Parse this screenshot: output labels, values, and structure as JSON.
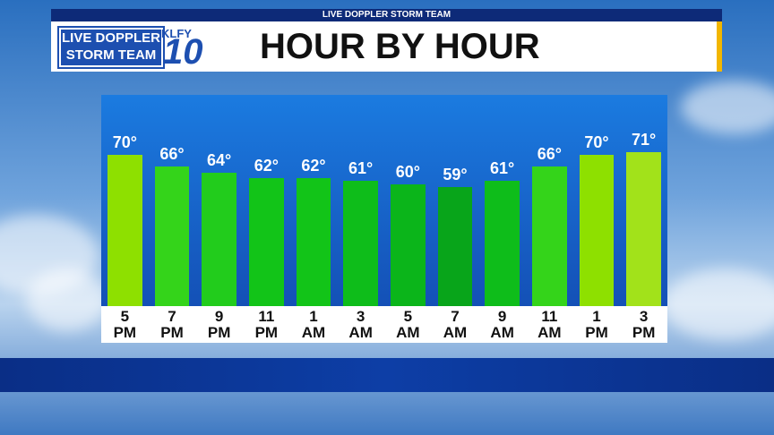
{
  "header": {
    "strip": "LIVE DOPPLER STORM TEAM",
    "logo_line1": "LIVE DOPPLER",
    "logo_line2": "STORM TEAM",
    "station": "KLFY",
    "channel": "10"
  },
  "chart_data": {
    "type": "bar",
    "title": "HOUR BY HOUR",
    "categories": [
      "5 PM",
      "7 PM",
      "9 PM",
      "11 PM",
      "1 AM",
      "3 AM",
      "5 AM",
      "7 AM",
      "9 AM",
      "11 AM",
      "1 PM",
      "3 PM"
    ],
    "values": [
      70,
      66,
      64,
      62,
      62,
      61,
      60,
      59,
      61,
      66,
      70,
      71
    ],
    "value_labels": [
      "70°",
      "66°",
      "64°",
      "62°",
      "62°",
      "61°",
      "60°",
      "59°",
      "61°",
      "66°",
      "70°",
      "71°"
    ],
    "colors": [
      "#8ee000",
      "#34d41a",
      "#22cc1c",
      "#12c418",
      "#12c418",
      "#0ebd1a",
      "#0bb51a",
      "#08a51a",
      "#0ebd1a",
      "#34d41a",
      "#8ee000",
      "#a2e21a"
    ],
    "ylim": [
      18,
      90
    ]
  }
}
